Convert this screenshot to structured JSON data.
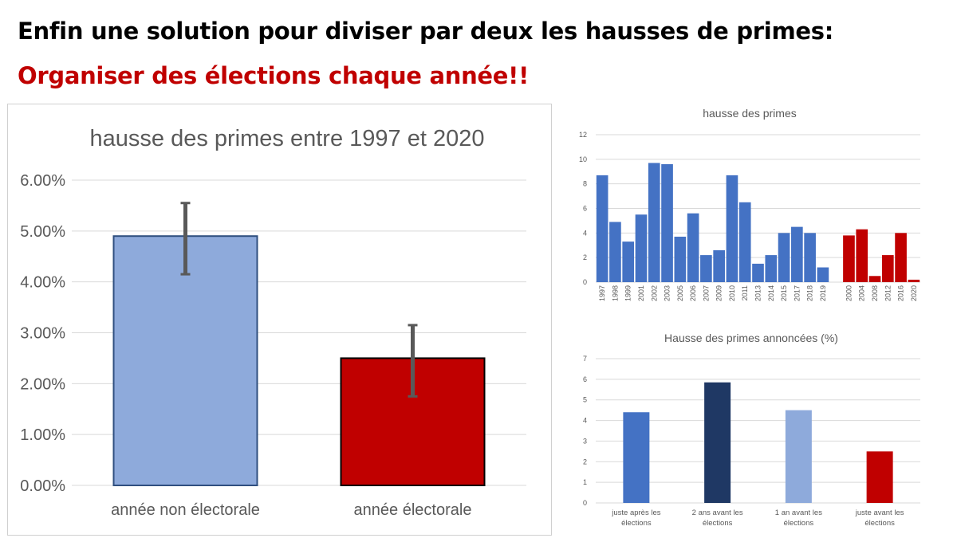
{
  "headline": {
    "line1": "Enfin une solution pour diviser par deux les hausses de primes:",
    "line2": "Organiser des élections chaque année!!"
  },
  "colors": {
    "blue": "#4472c4",
    "light_blue": "#8eaadb",
    "dark_blue": "#1f3864",
    "red": "#c00000",
    "error_bar": "#595959",
    "grid": "#d9d9d9",
    "text": "#595959"
  },
  "chart_data": [
    {
      "id": "main",
      "type": "bar",
      "title": "hausse des primes entre 1997 et 2020",
      "categories": [
        "année non électorale",
        "année électorale"
      ],
      "values": [
        4.9,
        2.5
      ],
      "error_bars": [
        [
          4.15,
          5.55
        ],
        [
          1.75,
          3.15
        ]
      ],
      "bar_colors": [
        "light_blue",
        "red"
      ],
      "yticks": [
        "0.00%",
        "1.00%",
        "2.00%",
        "3.00%",
        "4.00%",
        "5.00%",
        "6.00%"
      ],
      "ylim": [
        0,
        6
      ],
      "grid": true
    },
    {
      "id": "yearly",
      "type": "bar",
      "title": "hausse des primes",
      "categories": [
        "1997",
        "1998",
        "1999",
        "2001",
        "2002",
        "2003",
        "2005",
        "2006",
        "2007",
        "2009",
        "2010",
        "2011",
        "2013",
        "2014",
        "2015",
        "2017",
        "2018",
        "2019",
        "",
        "2000",
        "2004",
        "2008",
        "2012",
        "2016",
        "2020"
      ],
      "values": [
        8.7,
        4.9,
        3.3,
        5.5,
        9.7,
        9.6,
        3.7,
        5.6,
        2.2,
        2.6,
        8.7,
        6.5,
        1.5,
        2.2,
        4.0,
        4.5,
        4.0,
        1.2,
        null,
        3.8,
        4.3,
        0.5,
        2.2,
        4.0,
        0.2
      ],
      "bar_colors": [
        "blue",
        "blue",
        "blue",
        "blue",
        "blue",
        "blue",
        "blue",
        "blue",
        "blue",
        "blue",
        "blue",
        "blue",
        "blue",
        "blue",
        "blue",
        "blue",
        "blue",
        "blue",
        "blue",
        "red",
        "red",
        "red",
        "red",
        "red",
        "red"
      ],
      "yticks": [
        "0",
        "2",
        "4",
        "6",
        "8",
        "10",
        "12"
      ],
      "ylim": [
        0,
        12
      ],
      "grid": true
    },
    {
      "id": "announced",
      "type": "bar",
      "title": "Hausse des primes annoncées (%)",
      "categories": [
        [
          "juste après les",
          "élections"
        ],
        [
          "2 ans avant les",
          "élections"
        ],
        [
          "1 an avant les",
          "élections"
        ],
        [
          "juste avant les",
          "élections"
        ]
      ],
      "values": [
        4.4,
        5.85,
        4.5,
        2.5
      ],
      "bar_colors": [
        "blue",
        "dark_blue",
        "light_blue",
        "red"
      ],
      "yticks": [
        "0",
        "1",
        "2",
        "3",
        "4",
        "5",
        "6",
        "7"
      ],
      "ylim": [
        0,
        7
      ],
      "grid": true
    }
  ]
}
